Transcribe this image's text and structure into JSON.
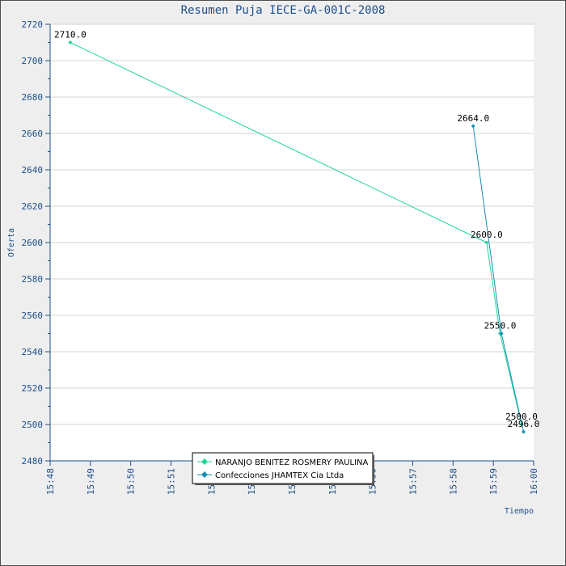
{
  "chart_data": {
    "type": "line",
    "title": "Resumen Puja IECE-GA-001C-2008",
    "xlabel": "Tiempo",
    "ylabel": "Oferta",
    "x_ticks": [
      "15:48",
      "15:49",
      "15:50",
      "15:51",
      "15:52",
      "15:53",
      "15:54",
      "15:55",
      "15:56",
      "15:57",
      "15:58",
      "15:59",
      "16:00"
    ],
    "xlim": [
      "15:48",
      "16:00"
    ],
    "ylim": [
      2480,
      2720
    ],
    "y_ticks": [
      2480,
      2500,
      2520,
      2540,
      2560,
      2580,
      2600,
      2620,
      2640,
      2660,
      2680,
      2700,
      2720
    ],
    "grid": true,
    "legend_position": "bottom-center",
    "series": [
      {
        "name": "NARANJO BENITEZ ROSMERY PAULINA",
        "color": "#1ed699",
        "points": [
          {
            "x": "15:48:30",
            "y": 2710.0,
            "label": "2710.0"
          },
          {
            "x": "15:58:50",
            "y": 2600.0,
            "label": "2600.0"
          },
          {
            "x": "15:59:10",
            "y": 2550.0,
            "label": "2550.0"
          },
          {
            "x": "15:59:42",
            "y": 2500.0,
            "label": "2500.0"
          }
        ]
      },
      {
        "name": "Confecciones JHAMTEX Cia Ltda",
        "color": "#178fb5",
        "points": [
          {
            "x": "15:58:30",
            "y": 2664.0,
            "label": "2664.0"
          },
          {
            "x": "15:59:12",
            "y": 2550.0,
            "label": ""
          },
          {
            "x": "15:59:45",
            "y": 2496.0,
            "label": "2496.0"
          }
        ]
      }
    ]
  }
}
